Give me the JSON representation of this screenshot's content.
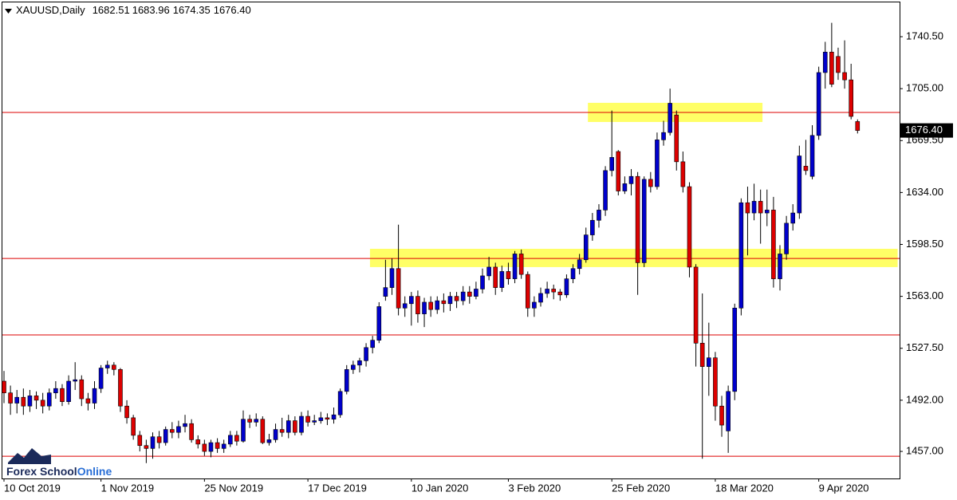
{
  "chart_data": {
    "type": "candlestick",
    "title": "XAUUSD,Daily",
    "ohlc_labels": [
      "1682.51",
      "1683.96",
      "1674.35",
      "1676.40"
    ],
    "watermark": [
      "Forex School",
      "Online"
    ],
    "categories": [
      "10 Oct 2019",
      null,
      null,
      null,
      null,
      null,
      null,
      null,
      null,
      null,
      null,
      null,
      null,
      null,
      null,
      "1 Nov 2019",
      null,
      null,
      null,
      null,
      null,
      null,
      null,
      null,
      null,
      null,
      null,
      null,
      null,
      null,
      null,
      "25 Nov 2019",
      null,
      null,
      null,
      null,
      null,
      null,
      null,
      null,
      null,
      null,
      null,
      null,
      null,
      null,
      null,
      "17 Dec 2019",
      null,
      null,
      null,
      null,
      null,
      null,
      null,
      null,
      null,
      null,
      null,
      null,
      null,
      null,
      null,
      "10 Jan 2020",
      null,
      null,
      null,
      null,
      null,
      null,
      null,
      null,
      null,
      null,
      null,
      null,
      null,
      null,
      "3 Feb 2020",
      null,
      null,
      null,
      null,
      null,
      null,
      null,
      null,
      null,
      null,
      null,
      null,
      null,
      null,
      null,
      "25 Feb 2020",
      null,
      null,
      null,
      null,
      null,
      null,
      null,
      null,
      null,
      null,
      null,
      null,
      null,
      null,
      null,
      "18 Mar 2020",
      null,
      null,
      null,
      null,
      null,
      null,
      null,
      null,
      null,
      null,
      null,
      null,
      null,
      null,
      null,
      "9 Apr 2020",
      null,
      null,
      null,
      null,
      null,
      null
    ],
    "open": [
      1505,
      1497,
      1490,
      1494,
      1488,
      1495,
      1492,
      1488,
      1497,
      1500,
      1491,
      1505,
      1506,
      1493,
      1490,
      1500,
      1514,
      1516,
      1513,
      1488,
      1480,
      1468,
      1461,
      1459,
      1467,
      1463,
      1472,
      1470,
      1474,
      1476,
      1465,
      1462,
      1457,
      1463,
      1459,
      1462,
      1468,
      1464,
      1479,
      1477,
      1479,
      1463,
      1465,
      1472,
      1470,
      1478,
      1470,
      1481,
      1477,
      1478,
      1480,
      1479,
      1482,
      1498,
      1513,
      1516,
      1519,
      1528,
      1533,
      1563,
      1569,
      1582,
      1555,
      1558,
      1563,
      1551,
      1559,
      1554,
      1560,
      1558,
      1563,
      1560,
      1566,
      1563,
      1568,
      1577,
      1583,
      1569,
      1580,
      1575,
      1592,
      1578,
      1555,
      1559,
      1565,
      1568,
      1566,
      1564,
      1575,
      1582,
      1588,
      1605,
      1615,
      1622,
      1649,
      1662,
      1635,
      1640,
      1645,
      1586,
      1643,
      1638,
      1670,
      1675,
      1687,
      1655,
      1638,
      1583,
      1531,
      1515,
      1521,
      1488,
      1471,
      1498,
      1555,
      1627,
      1620,
      1628,
      1620,
      1622,
      1575,
      1592,
      1613,
      1620,
      1652,
      1645,
      1673,
      1716,
      1730,
      1727,
      1716,
      1711,
      1682.51
    ],
    "high": [
      1512,
      1502,
      1499,
      1500,
      1499,
      1498,
      1497,
      1500,
      1505,
      1503,
      1509,
      1518,
      1509,
      1497,
      1505,
      1516,
      1519,
      1518,
      1514,
      1492,
      1482,
      1471,
      1465,
      1470,
      1471,
      1474,
      1477,
      1478,
      1482,
      1479,
      1468,
      1465,
      1465,
      1466,
      1465,
      1471,
      1471,
      1485,
      1482,
      1483,
      1481,
      1469,
      1476,
      1480,
      1482,
      1481,
      1484,
      1485,
      1482,
      1484,
      1483,
      1487,
      1500,
      1516,
      1519,
      1521,
      1531,
      1536,
      1559,
      1588,
      1589,
      1612,
      1563,
      1566,
      1567,
      1562,
      1563,
      1563,
      1565,
      1566,
      1566,
      1570,
      1570,
      1573,
      1582,
      1590,
      1586,
      1584,
      1586,
      1594,
      1595,
      1580,
      1563,
      1569,
      1573,
      1571,
      1568,
      1578,
      1585,
      1592,
      1610,
      1620,
      1626,
      1652,
      1690,
      1663,
      1645,
      1650,
      1648,
      1645,
      1648,
      1675,
      1683,
      1705,
      1690,
      1662,
      1641,
      1585,
      1565,
      1545,
      1525,
      1495,
      1502,
      1558,
      1630,
      1638,
      1640,
      1636,
      1636,
      1631,
      1598,
      1618,
      1626,
      1666,
      1670,
      1680,
      1720,
      1737,
      1750,
      1733,
      1738,
      1722,
      1683.96
    ],
    "low": [
      1490,
      1482,
      1483,
      1482,
      1484,
      1486,
      1483,
      1485,
      1493,
      1488,
      1489,
      1499,
      1488,
      1485,
      1486,
      1497,
      1510,
      1509,
      1484,
      1476,
      1465,
      1457,
      1449,
      1452,
      1459,
      1461,
      1466,
      1466,
      1470,
      1463,
      1459,
      1454,
      1453,
      1456,
      1456,
      1460,
      1461,
      1463,
      1473,
      1474,
      1462,
      1461,
      1463,
      1467,
      1466,
      1468,
      1468,
      1474,
      1475,
      1476,
      1475,
      1476,
      1480,
      1496,
      1510,
      1511,
      1515,
      1524,
      1531,
      1560,
      1564,
      1550,
      1549,
      1543,
      1545,
      1542,
      1549,
      1551,
      1552,
      1553,
      1555,
      1557,
      1558,
      1561,
      1565,
      1574,
      1564,
      1566,
      1571,
      1572,
      1575,
      1549,
      1549,
      1556,
      1562,
      1561,
      1560,
      1562,
      1572,
      1578,
      1586,
      1601,
      1610,
      1618,
      1645,
      1632,
      1633,
      1632,
      1564,
      1583,
      1634,
      1636,
      1666,
      1673,
      1649,
      1634,
      1576,
      1515,
      1452,
      1495,
      1478,
      1467,
      1456,
      1492,
      1550,
      1591,
      1615,
      1599,
      1611,
      1569,
      1567,
      1588,
      1608,
      1616,
      1646,
      1643,
      1670,
      1705,
      1706,
      1711,
      1705,
      1684,
      1674.35
    ],
    "close": [
      1497,
      1490,
      1494,
      1488,
      1495,
      1492,
      1488,
      1497,
      1500,
      1491,
      1505,
      1506,
      1493,
      1490,
      1500,
      1514,
      1516,
      1513,
      1488,
      1480,
      1468,
      1461,
      1459,
      1467,
      1463,
      1472,
      1470,
      1474,
      1476,
      1465,
      1462,
      1457,
      1463,
      1459,
      1462,
      1468,
      1464,
      1479,
      1477,
      1479,
      1463,
      1465,
      1472,
      1470,
      1478,
      1470,
      1481,
      1477,
      1478,
      1480,
      1479,
      1482,
      1498,
      1513,
      1516,
      1519,
      1528,
      1533,
      1556,
      1569,
      1582,
      1555,
      1558,
      1563,
      1551,
      1559,
      1554,
      1560,
      1558,
      1563,
      1560,
      1566,
      1563,
      1568,
      1577,
      1583,
      1569,
      1580,
      1575,
      1592,
      1578,
      1555,
      1559,
      1565,
      1568,
      1566,
      1564,
      1575,
      1582,
      1588,
      1605,
      1615,
      1622,
      1649,
      1658,
      1635,
      1640,
      1645,
      1586,
      1643,
      1638,
      1670,
      1675,
      1695,
      1655,
      1638,
      1583,
      1531,
      1515,
      1521,
      1488,
      1475,
      1498,
      1555,
      1627,
      1620,
      1628,
      1620,
      1622,
      1575,
      1592,
      1613,
      1620,
      1659,
      1649,
      1673,
      1716,
      1730,
      1708,
      1716,
      1711,
      1686,
      1676.4
    ],
    "up_color": "#0000cc",
    "down_color": "#dd0000",
    "xlim": [
      -0.37,
      138.5
    ],
    "ylim": [
      1438.5,
      1764.5
    ],
    "yticks": [
      {
        "value": 1457,
        "label": "1457.00"
      },
      {
        "value": 1492,
        "label": "1492.00"
      },
      {
        "value": 1527.5,
        "label": "1527.50"
      },
      {
        "value": 1563,
        "label": "1563.00"
      },
      {
        "value": 1598.5,
        "label": "1598.50"
      },
      {
        "value": 1634,
        "label": "1634.00"
      },
      {
        "value": 1669.5,
        "label": "1669.50"
      },
      {
        "value": 1705,
        "label": "1705.00"
      },
      {
        "value": 1740.5,
        "label": "1740.50"
      }
    ],
    "hlines": [
      1688.7,
      1588.9,
      1536.6,
      1453.7
    ],
    "hline_color": "#dd0000",
    "zones": [
      {
        "x": [
          90.3,
          117.3
        ],
        "y": [
          1682.2,
          1695.3
        ]
      },
      {
        "x": [
          56.6,
          138.2
        ],
        "y": [
          1583.0,
          1595.5
        ]
      }
    ],
    "zone_color": "#ffff66"
  }
}
